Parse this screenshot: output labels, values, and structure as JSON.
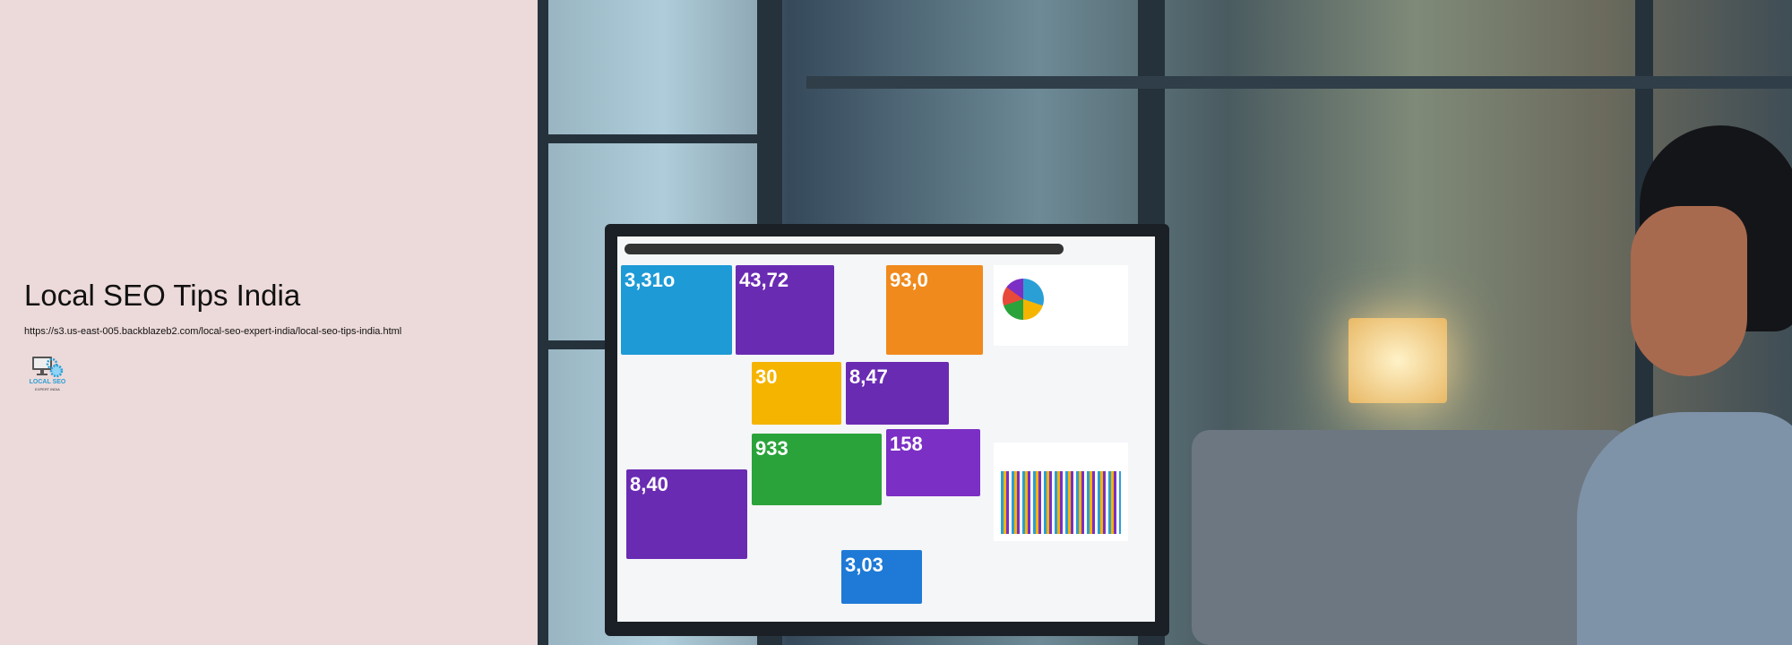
{
  "page": {
    "title": "Local SEO Tips India",
    "url": "https://s3.us-east-005.backblazeb2.com/local-seo-expert-india/local-seo-tips-india.html",
    "logo": {
      "line1": "LOCAL SEO",
      "line2": "EXPERT INDIA"
    }
  },
  "hero_image": {
    "description_icon": "photo-of-woman-viewing-seo-dashboard",
    "dashboard_tiles": [
      {
        "text": "3,31o",
        "color": "#1e9ad6"
      },
      {
        "text": "43,72",
        "color": "#6a2bb3"
      },
      {
        "text": "93,0",
        "color": "#f08a1c"
      },
      {
        "text": "30",
        "color": "#f5b400"
      },
      {
        "text": "8,47",
        "color": "#6a2bb3"
      },
      {
        "text": "933",
        "color": "#2aa33a"
      },
      {
        "text": "158",
        "color": "#7b2fc4"
      },
      {
        "text": "8,40",
        "color": "#6a2bb3"
      },
      {
        "text": "3,03",
        "color": "#1e7ad6"
      }
    ]
  }
}
